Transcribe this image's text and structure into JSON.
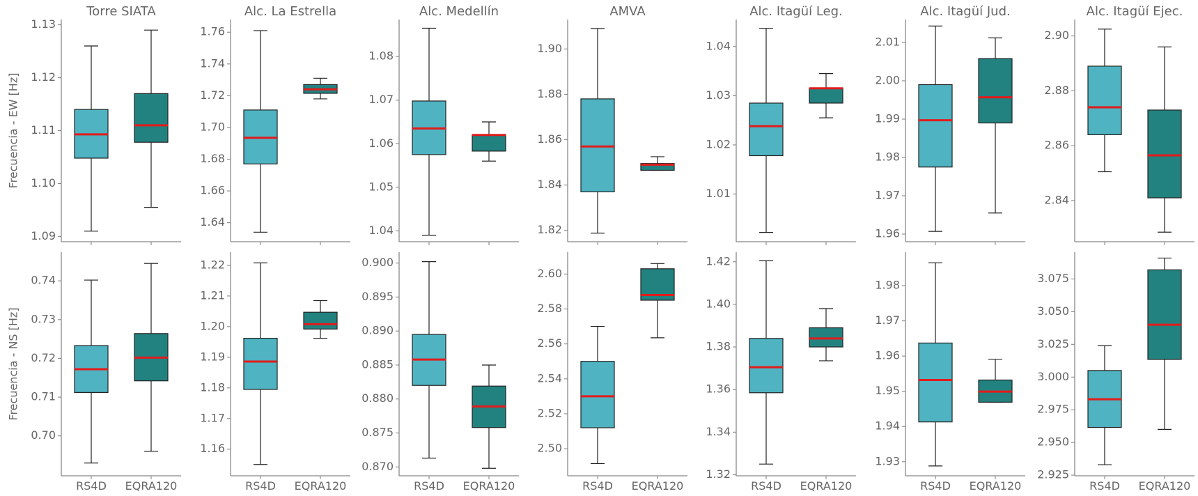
{
  "chart_data": {
    "type": "box",
    "grid": false,
    "categories": [
      "RS4D",
      "EQRA120"
    ],
    "colors": {
      "RS4D": "#4fb3c1",
      "EQRA120": "#228280",
      "median": "#e21b1b"
    },
    "panel_titles": [
      "Torre SIATA",
      "Alc. La Estrella",
      "Alc. Medellín",
      "AMVA",
      "Alc. Itagüí Leg.",
      "Alc. Itagüí Jud.",
      "Alc. Itagüí Ejec."
    ],
    "row_labels": [
      "Frecuencia - EW [Hz]",
      "Frecuencia - NS [Hz]"
    ],
    "rows": [
      [
        {
          "title": "Torre SIATA",
          "ylim": [
            1.089,
            1.131
          ],
          "yticks": [
            "1.09",
            "1.10",
            "1.11",
            "1.12",
            "1.13"
          ],
          "boxes": [
            {
              "category": "RS4D",
              "whislo": 1.091,
              "q1": 1.1048,
              "median": 1.1093,
              "q3": 1.114,
              "whishi": 1.126
            },
            {
              "category": "EQRA120",
              "whislo": 1.0955,
              "q1": 1.1078,
              "median": 1.111,
              "q3": 1.117,
              "whishi": 1.129
            }
          ]
        },
        {
          "title": "Alc. La Estrella",
          "ylim": [
            1.628,
            1.768
          ],
          "yticks": [
            "1.64",
            "1.66",
            "1.68",
            "1.70",
            "1.72",
            "1.74",
            "1.76"
          ],
          "boxes": [
            {
              "category": "RS4D",
              "whislo": 1.634,
              "q1": 1.677,
              "median": 1.6935,
              "q3": 1.711,
              "whishi": 1.761
            },
            {
              "category": "EQRA120",
              "whislo": 1.718,
              "q1": 1.7215,
              "median": 1.724,
              "q3": 1.727,
              "whishi": 1.731
            }
          ]
        },
        {
          "title": "Alc. Medellín",
          "ylim": [
            1.0375,
            1.0885
          ],
          "yticks": [
            "1.04",
            "1.05",
            "1.06",
            "1.07",
            "1.08"
          ],
          "boxes": [
            {
              "category": "RS4D",
              "whislo": 1.039,
              "q1": 1.0575,
              "median": 1.0635,
              "q3": 1.0698,
              "whishi": 1.0865
            },
            {
              "category": "EQRA120",
              "whislo": 1.056,
              "q1": 1.0583,
              "median": 1.062,
              "q3": 1.062,
              "whishi": 1.065
            }
          ]
        },
        {
          "title": "AMVA",
          "ylim": [
            1.815,
            1.913
          ],
          "yticks": [
            "1.82",
            "1.84",
            "1.86",
            "1.88",
            "1.90"
          ],
          "boxes": [
            {
              "category": "RS4D",
              "whislo": 1.8188,
              "q1": 1.837,
              "median": 1.857,
              "q3": 1.878,
              "whishi": 1.909
            },
            {
              "category": "EQRA120",
              "whislo": 1.8465,
              "q1": 1.8465,
              "median": 1.849,
              "q3": 1.8495,
              "whishi": 1.8525
            }
          ]
        },
        {
          "title": "Alc. Itagüí Leg.",
          "ylim": [
            1.0003,
            1.0455
          ],
          "yticks": [
            "1.01",
            "1.02",
            "1.03",
            "1.04"
          ],
          "boxes": [
            {
              "category": "RS4D",
              "whislo": 1.0022,
              "q1": 1.0178,
              "median": 1.0238,
              "q3": 1.0285,
              "whishi": 1.0437
            },
            {
              "category": "EQRA120",
              "whislo": 1.0255,
              "q1": 1.0285,
              "median": 1.0315,
              "q3": 1.0315,
              "whishi": 1.0345
            }
          ]
        },
        {
          "title": "Alc. Itagüí Jud.",
          "ylim": [
            1.958,
            2.016
          ],
          "yticks": [
            "1.96",
            "1.97",
            "1.98",
            "1.99",
            "2.00",
            "2.01"
          ],
          "boxes": [
            {
              "category": "RS4D",
              "whislo": 1.9607,
              "q1": 1.9775,
              "median": 1.9897,
              "q3": 1.999,
              "whishi": 2.0143
            },
            {
              "category": "EQRA120",
              "whislo": 1.9655,
              "q1": 1.989,
              "median": 1.9957,
              "q3": 2.0058,
              "whishi": 2.0112
            }
          ]
        },
        {
          "title": "Alc. Itagüí Ejec.",
          "ylim": [
            2.825,
            2.906
          ],
          "yticks": [
            "2.84",
            "2.86",
            "2.88",
            "2.90"
          ],
          "boxes": [
            {
              "category": "RS4D",
              "whislo": 2.8505,
              "q1": 2.864,
              "median": 2.874,
              "q3": 2.889,
              "whishi": 2.9025
            },
            {
              "category": "EQRA120",
              "whislo": 2.8285,
              "q1": 2.841,
              "median": 2.8565,
              "q3": 2.873,
              "whishi": 2.896
            }
          ]
        }
      ],
      [
        {
          "title": "Torre SIATA",
          "ylim": [
            0.6897,
            0.7474
          ],
          "yticks": [
            "0.70",
            "0.71",
            "0.72",
            "0.73",
            "0.74"
          ],
          "boxes": [
            {
              "category": "RS4D",
              "whislo": 0.693,
              "q1": 0.7112,
              "median": 0.7172,
              "q3": 0.7233,
              "whishi": 0.7402
            },
            {
              "category": "EQRA120",
              "whislo": 0.696,
              "q1": 0.7142,
              "median": 0.7202,
              "q3": 0.7264,
              "whishi": 0.7445
            }
          ]
        },
        {
          "title": "Alc. La Estrella",
          "ylim": [
            1.1513,
            1.2243
          ],
          "yticks": [
            "1.16",
            "1.17",
            "1.18",
            "1.19",
            "1.20",
            "1.21",
            "1.22"
          ],
          "boxes": [
            {
              "category": "RS4D",
              "whislo": 1.155,
              "q1": 1.1795,
              "median": 1.1886,
              "q3": 1.1962,
              "whishi": 1.2208
            },
            {
              "category": "EQRA120",
              "whislo": 1.1962,
              "q1": 1.1992,
              "median": 1.2008,
              "q3": 1.2047,
              "whishi": 1.2085
            }
          ]
        },
        {
          "title": "Alc. Medellín",
          "ylim": [
            0.8687,
            0.9016
          ],
          "yticks": [
            "0.870",
            "0.875",
            "0.880",
            "0.885",
            "0.890",
            "0.895",
            "0.900"
          ],
          "boxes": [
            {
              "category": "RS4D",
              "whislo": 0.8713,
              "q1": 0.882,
              "median": 0.8858,
              "q3": 0.8895,
              "whishi": 0.9002
            },
            {
              "category": "EQRA120",
              "whislo": 0.8698,
              "q1": 0.8758,
              "median": 0.8789,
              "q3": 0.8819,
              "whishi": 0.885
            }
          ]
        },
        {
          "title": "AMVA",
          "ylim": [
            2.4845,
            2.6125
          ],
          "yticks": [
            "2.50",
            "2.52",
            "2.54",
            "2.56",
            "2.58",
            "2.60"
          ],
          "boxes": [
            {
              "category": "RS4D",
              "whislo": 2.4915,
              "q1": 2.512,
              "median": 2.53,
              "q3": 2.55,
              "whishi": 2.57
            },
            {
              "category": "EQRA120",
              "whislo": 2.5635,
              "q1": 2.585,
              "median": 2.588,
              "q3": 2.603,
              "whishi": 2.606
            }
          ]
        },
        {
          "title": "Alc. Itagüí Leg.",
          "ylim": [
            1.3195,
            1.4245
          ],
          "yticks": [
            "1.32",
            "1.34",
            "1.36",
            "1.38",
            "1.40",
            "1.42"
          ],
          "boxes": [
            {
              "category": "RS4D",
              "whislo": 1.325,
              "q1": 1.3585,
              "median": 1.3705,
              "q3": 1.384,
              "whishi": 1.4205
            },
            {
              "category": "EQRA120",
              "whislo": 1.3735,
              "q1": 1.38,
              "median": 1.384,
              "q3": 1.389,
              "whishi": 1.398
            }
          ]
        },
        {
          "title": "Alc. Itagüí Jud.",
          "ylim": [
            1.926,
            1.9895
          ],
          "yticks": [
            "1.93",
            "1.94",
            "1.95",
            "1.96",
            "1.97",
            "1.98"
          ],
          "boxes": [
            {
              "category": "RS4D",
              "whislo": 1.9288,
              "q1": 1.9413,
              "median": 1.9532,
              "q3": 1.9637,
              "whishi": 1.9865
            },
            {
              "category": "EQRA120",
              "whislo": 1.9469,
              "q1": 1.9469,
              "median": 1.9499,
              "q3": 1.9532,
              "whishi": 1.9591
            }
          ]
        },
        {
          "title": "Alc. Itagüí Ejec.",
          "ylim": [
            2.9245,
            3.0955
          ],
          "yticks": [
            "2.925",
            "2.950",
            "2.975",
            "3.000",
            "3.025",
            "3.050",
            "3.075"
          ],
          "boxes": [
            {
              "category": "RS4D",
              "whislo": 2.933,
              "q1": 2.9615,
              "median": 2.983,
              "q3": 3.005,
              "whishi": 3.024
            },
            {
              "category": "EQRA120",
              "whislo": 2.96,
              "q1": 3.0135,
              "median": 3.04,
              "q3": 3.082,
              "whishi": 3.091
            }
          ]
        }
      ]
    ]
  }
}
